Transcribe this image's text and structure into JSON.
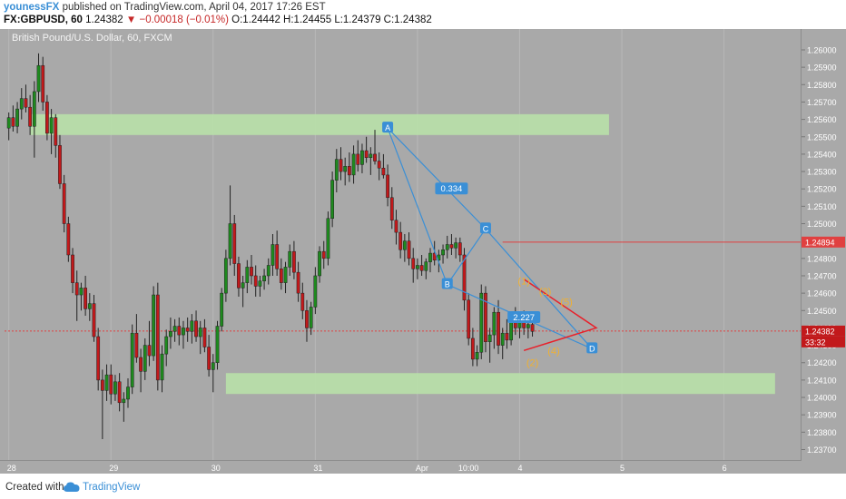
{
  "header": {
    "author": "younessFX",
    "published_text": "published on TradingView.com, April 04, 2017 17:26 EST",
    "symbol": "FX:GBPUSD, 60",
    "last": "1.24382",
    "change": "▼ −0.00018 (−0.01%)",
    "ohlc": "O:1.24442 H:1.24455 L:1.24379 C:1.24382"
  },
  "pane_title": "British Pound/U.S. Dollar, 60, FXCM",
  "footer": {
    "created_with": "Created with",
    "brand": "TradingView"
  },
  "colors": {
    "up": "#1e8a1e",
    "down": "#c2191b",
    "zone": "#b8e0a8",
    "pattern": "#3a8fd6",
    "wave": "#f0b030",
    "triangle": "#e8202a",
    "level_line": "#e04040",
    "background": "#a9a9a9"
  },
  "chart_data": {
    "type": "candlestick",
    "title": "British Pound/U.S. Dollar, 60, FXCM",
    "y_ticks": [
      "1.26000",
      "1.25900",
      "1.25800",
      "1.25700",
      "1.25600",
      "1.25500",
      "1.25400",
      "1.25300",
      "1.25200",
      "1.25100",
      "1.25000",
      "1.24900",
      "1.24800",
      "1.24700",
      "1.24600",
      "1.24500",
      "1.24400",
      "1.24300",
      "1.24200",
      "1.24100",
      "1.24000",
      "1.23900",
      "1.23800",
      "1.23700"
    ],
    "ylim": [
      1.2364,
      1.2612
    ],
    "x_labels": [
      {
        "label": "28",
        "x": 0
      },
      {
        "label": "29",
        "x": 24
      },
      {
        "label": "30",
        "x": 48
      },
      {
        "label": "31",
        "x": 72
      },
      {
        "label": "Apr",
        "x": 96
      },
      {
        "label": "10:00",
        "x": 106
      },
      {
        "label": "4",
        "x": 120
      },
      {
        "label": "5",
        "x": 144
      },
      {
        "label": "6",
        "x": 168
      }
    ],
    "xlim": [
      -1,
      186
    ],
    "candles": [
      [
        1.2555,
        1.2564,
        1.2548,
        1.2561
      ],
      [
        1.2561,
        1.2568,
        1.2553,
        1.2556
      ],
      [
        1.2556,
        1.257,
        1.2552,
        1.2566
      ],
      [
        1.2566,
        1.2578,
        1.256,
        1.2572
      ],
      [
        1.2572,
        1.258,
        1.2564,
        1.2567
      ],
      [
        1.2567,
        1.2574,
        1.2551,
        1.2556
      ],
      [
        1.2556,
        1.2582,
        1.2538,
        1.2576
      ],
      [
        1.2576,
        1.2598,
        1.257,
        1.2591
      ],
      [
        1.2591,
        1.2596,
        1.2565,
        1.257
      ],
      [
        1.257,
        1.2574,
        1.2548,
        1.2552
      ],
      [
        1.2552,
        1.2566,
        1.254,
        1.2561
      ],
      [
        1.2561,
        1.2563,
        1.2538,
        1.2545
      ],
      [
        1.2545,
        1.2551,
        1.252,
        1.2523
      ],
      [
        1.2523,
        1.2528,
        1.2495,
        1.25
      ],
      [
        1.25,
        1.2504,
        1.2478,
        1.2482
      ],
      [
        1.2482,
        1.2486,
        1.246,
        1.2466
      ],
      [
        1.2466,
        1.2473,
        1.2444,
        1.2459
      ],
      [
        1.2459,
        1.2466,
        1.245,
        1.2463
      ],
      [
        1.2463,
        1.247,
        1.2447,
        1.2451
      ],
      [
        1.2451,
        1.246,
        1.2444,
        1.2454
      ],
      [
        1.2454,
        1.2459,
        1.2432,
        1.2435
      ],
      [
        1.2435,
        1.244,
        1.2404,
        1.241
      ],
      [
        1.241,
        1.2416,
        1.2376,
        1.2404
      ],
      [
        1.2404,
        1.2419,
        1.2398,
        1.2413
      ],
      [
        1.2413,
        1.2419,
        1.2396,
        1.2402
      ],
      [
        1.2402,
        1.2413,
        1.2398,
        1.2409
      ],
      [
        1.2409,
        1.2414,
        1.2392,
        1.2397
      ],
      [
        1.2397,
        1.2403,
        1.2386,
        1.2399
      ],
      [
        1.2399,
        1.2411,
        1.2394,
        1.2406
      ],
      [
        1.2406,
        1.2442,
        1.2402,
        1.2437
      ],
      [
        1.2437,
        1.2448,
        1.242,
        1.2423
      ],
      [
        1.2423,
        1.2428,
        1.2403,
        1.2415
      ],
      [
        1.2415,
        1.2434,
        1.241,
        1.243
      ],
      [
        1.243,
        1.2444,
        1.2418,
        1.2424
      ],
      [
        1.2424,
        1.2464,
        1.2421,
        1.2459
      ],
      [
        1.2459,
        1.2466,
        1.2404,
        1.241
      ],
      [
        1.241,
        1.243,
        1.2403,
        1.2425
      ],
      [
        1.2425,
        1.2439,
        1.2418,
        1.2435
      ],
      [
        1.2435,
        1.2446,
        1.2428,
        1.2438
      ],
      [
        1.2438,
        1.2445,
        1.2432,
        1.2441
      ],
      [
        1.2441,
        1.2446,
        1.243,
        1.2436
      ],
      [
        1.2436,
        1.2444,
        1.2428,
        1.244
      ],
      [
        1.244,
        1.2446,
        1.2432,
        1.2438
      ],
      [
        1.2438,
        1.2448,
        1.2431,
        1.2444
      ],
      [
        1.2444,
        1.245,
        1.2432,
        1.2435
      ],
      [
        1.2435,
        1.2444,
        1.2425,
        1.244
      ],
      [
        1.244,
        1.2445,
        1.2426,
        1.2429
      ],
      [
        1.2429,
        1.2436,
        1.2412,
        1.2416
      ],
      [
        1.2416,
        1.2425,
        1.2403,
        1.242
      ],
      [
        1.242,
        1.2444,
        1.2416,
        1.2441
      ],
      [
        1.2441,
        1.2463,
        1.2438,
        1.246
      ],
      [
        1.246,
        1.2485,
        1.2455,
        1.248
      ],
      [
        1.248,
        1.2522,
        1.2476,
        1.25
      ],
      [
        1.25,
        1.2505,
        1.247,
        1.2477
      ],
      [
        1.2477,
        1.2481,
        1.2458,
        1.2463
      ],
      [
        1.2463,
        1.247,
        1.2452,
        1.2466
      ],
      [
        1.2466,
        1.2479,
        1.246,
        1.2475
      ],
      [
        1.2475,
        1.2482,
        1.2465,
        1.247
      ],
      [
        1.247,
        1.2476,
        1.2458,
        1.2464
      ],
      [
        1.2464,
        1.247,
        1.2458,
        1.2467
      ],
      [
        1.2467,
        1.2474,
        1.2462,
        1.247
      ],
      [
        1.247,
        1.248,
        1.2465,
        1.2476
      ],
      [
        1.2476,
        1.2494,
        1.247,
        1.2488
      ],
      [
        1.2488,
        1.2496,
        1.247,
        1.2474
      ],
      [
        1.2474,
        1.248,
        1.2462,
        1.2466
      ],
      [
        1.2466,
        1.2478,
        1.246,
        1.2475
      ],
      [
        1.2475,
        1.2488,
        1.247,
        1.2484
      ],
      [
        1.2484,
        1.249,
        1.2468,
        1.2472
      ],
      [
        1.2472,
        1.2478,
        1.2455,
        1.246
      ],
      [
        1.246,
        1.2466,
        1.2445,
        1.245
      ],
      [
        1.245,
        1.2456,
        1.2432,
        1.244
      ],
      [
        1.244,
        1.2455,
        1.2436,
        1.2452
      ],
      [
        1.2452,
        1.2475,
        1.2448,
        1.247
      ],
      [
        1.247,
        1.2487,
        1.2466,
        1.2484
      ],
      [
        1.2484,
        1.249,
        1.2474,
        1.248
      ],
      [
        1.248,
        1.2507,
        1.2476,
        1.2503
      ],
      [
        1.2503,
        1.253,
        1.2498,
        1.2525
      ],
      [
        1.2525,
        1.2543,
        1.2518,
        1.2537
      ],
      [
        1.2537,
        1.2544,
        1.2525,
        1.253
      ],
      [
        1.253,
        1.2538,
        1.2522,
        1.2533
      ],
      [
        1.2533,
        1.2541,
        1.2524,
        1.2528
      ],
      [
        1.2528,
        1.2545,
        1.2523,
        1.254
      ],
      [
        1.254,
        1.2548,
        1.253,
        1.2534
      ],
      [
        1.2534,
        1.2546,
        1.2529,
        1.2542
      ],
      [
        1.2542,
        1.255,
        1.2535,
        1.2538
      ],
      [
        1.2538,
        1.2544,
        1.2528,
        1.254
      ],
      [
        1.254,
        1.2554,
        1.2534,
        1.2536
      ],
      [
        1.2536,
        1.2541,
        1.2525,
        1.2532
      ],
      [
        1.2532,
        1.254,
        1.2526,
        1.2528
      ],
      [
        1.2528,
        1.2534,
        1.251,
        1.2515
      ],
      [
        1.2515,
        1.2521,
        1.2497,
        1.2502
      ],
      [
        1.2502,
        1.2508,
        1.2488,
        1.2495
      ],
      [
        1.2495,
        1.2501,
        1.248,
        1.2485
      ],
      [
        1.2485,
        1.2494,
        1.2478,
        1.249
      ],
      [
        1.249,
        1.2495,
        1.2476,
        1.248
      ],
      [
        1.248,
        1.2486,
        1.2466,
        1.2474
      ],
      [
        1.2474,
        1.248,
        1.2468,
        1.2476
      ],
      [
        1.2476,
        1.2482,
        1.247,
        1.2473
      ],
      [
        1.2473,
        1.248,
        1.2468,
        1.2478
      ],
      [
        1.2478,
        1.2486,
        1.2472,
        1.2483
      ],
      [
        1.2483,
        1.249,
        1.2476,
        1.2479
      ],
      [
        1.2479,
        1.2485,
        1.2472,
        1.2482
      ],
      [
        1.2482,
        1.2488,
        1.2477,
        1.2485
      ],
      [
        1.2485,
        1.2493,
        1.248,
        1.2488
      ],
      [
        1.2488,
        1.2494,
        1.2482,
        1.2486
      ],
      [
        1.2486,
        1.2492,
        1.248,
        1.2489
      ],
      [
        1.2489,
        1.2492,
        1.2478,
        1.2482
      ],
      [
        1.2482,
        1.2486,
        1.245,
        1.2456
      ],
      [
        1.2456,
        1.246,
        1.243,
        1.2434
      ],
      [
        1.2434,
        1.244,
        1.2418,
        1.2422
      ],
      [
        1.2422,
        1.243,
        1.2418,
        1.2426
      ],
      [
        1.2426,
        1.2465,
        1.2422,
        1.246
      ],
      [
        1.246,
        1.2464,
        1.2426,
        1.2432
      ],
      [
        1.2432,
        1.244,
        1.242,
        1.2436
      ],
      [
        1.2436,
        1.2452,
        1.2428,
        1.2449
      ],
      [
        1.2449,
        1.2456,
        1.2425,
        1.243
      ],
      [
        1.243,
        1.244,
        1.2422,
        1.2437
      ],
      [
        1.2437,
        1.2445,
        1.2428,
        1.2433
      ],
      [
        1.2433,
        1.2448,
        1.243,
        1.2444
      ],
      [
        1.2444,
        1.2452,
        1.2436,
        1.244
      ],
      [
        1.244,
        1.2448,
        1.2434,
        1.2444
      ],
      [
        1.2444,
        1.245,
        1.2436,
        1.244
      ],
      [
        1.244,
        1.2446,
        1.2434,
        1.2442
      ],
      [
        1.2442,
        1.2446,
        1.2435,
        1.2438
      ]
    ],
    "zones": [
      {
        "from_x": 5,
        "to_x": 141,
        "y_low": 1.2551,
        "y_high": 1.2563
      },
      {
        "from_x": 51,
        "to_x": 180,
        "y_low": 1.2402,
        "y_high": 1.2414
      }
    ],
    "level_line": 1.24894,
    "current_price": 1.24382,
    "pattern": {
      "points": [
        {
          "label": "A",
          "x": 89,
          "y": 1.2555
        },
        {
          "label": "B",
          "x": 103,
          "y": 1.2465
        },
        {
          "label": "C",
          "x": 112,
          "y": 1.2497
        },
        {
          "label": "D",
          "x": 137,
          "y": 1.2428
        }
      ],
      "ratios": [
        {
          "label": "0.334",
          "x": 104,
          "y": 1.252
        },
        {
          "label": "2.227",
          "x": 121,
          "y": 1.2446
        }
      ]
    },
    "waves": [
      {
        "label": "(1)",
        "x": 121,
        "y": 1.2467
      },
      {
        "label": "(2)",
        "x": 123,
        "y": 1.242
      },
      {
        "label": "(3)",
        "x": 126,
        "y": 1.2461
      },
      {
        "label": "(4)",
        "x": 128,
        "y": 1.2427
      },
      {
        "label": "(5)",
        "x": 131,
        "y": 1.2455
      }
    ],
    "triangle": {
      "top": [
        121,
        1.2468
      ],
      "bottom": [
        121,
        1.2427
      ],
      "apex": [
        138,
        1.244
      ]
    },
    "price_labels": {
      "level": "1.24894",
      "current": "1.24382",
      "countdown": "33:32"
    }
  }
}
